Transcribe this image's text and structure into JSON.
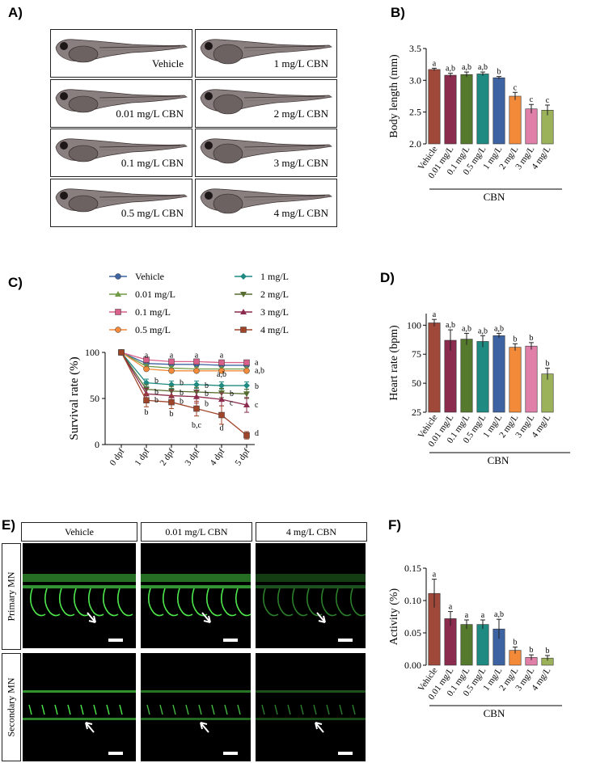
{
  "panels": {
    "a": "A)",
    "b": "B)",
    "c": "C)",
    "d": "D)",
    "e": "E)",
    "f": "F)"
  },
  "fish_images": [
    {
      "label": "Vehicle"
    },
    {
      "label": "1 mg/L CBN"
    },
    {
      "label": "0.01 mg/L CBN"
    },
    {
      "label": "2 mg/L CBN"
    },
    {
      "label": "0.1 mg/L CBN"
    },
    {
      "label": "3 mg/L CBN"
    },
    {
      "label": "0.5 mg/L CBN"
    },
    {
      "label": "4 mg/L CBN"
    }
  ],
  "mn_images": {
    "headers": [
      "Vehicle",
      "0.01 mg/L CBN",
      "4 mg/L CBN"
    ],
    "rows": [
      "Primary MN",
      "Secondary MN"
    ]
  },
  "colors": {
    "vehicle": "#A0483A",
    "c001": "#8B2B4E",
    "c01": "#557A2E",
    "c05": "#1F8A82",
    "c1": "#3E63A3",
    "c2": "#F28A3A",
    "c3": "#E07FA8",
    "c4": "#9BB25B",
    "line_vehicle": "#3E63A3",
    "line_001": "#6E9A45",
    "line_01": "#D9608A",
    "line_05": "#F28A3A",
    "line_1": "#1F8A82",
    "line_2": "#556B2F",
    "line_3": "#8B2B4E",
    "line_4": "#A0452A"
  },
  "chart_data": [
    {
      "id": "B",
      "type": "bar",
      "ylabel": "Body length (mm)",
      "xlabel": "CBN",
      "categories": [
        "Vehicle",
        "0.01 mg/L",
        "0.1 mg/L",
        "0.5 mg/L",
        "1 mg/L",
        "2 mg/L",
        "3 mg/L",
        "4 mg/L"
      ],
      "values": [
        3.17,
        3.08,
        3.09,
        3.1,
        3.04,
        2.75,
        2.55,
        2.53
      ],
      "errors": [
        0.02,
        0.03,
        0.04,
        0.03,
        0.02,
        0.06,
        0.07,
        0.08
      ],
      "letters": [
        "a",
        "a,b",
        "a,b",
        "a,b",
        "b",
        "c",
        "c",
        "c"
      ],
      "ylim": [
        2.0,
        3.5
      ],
      "yticks": [
        "2.0",
        "2.5",
        "3.0",
        "3.5"
      ]
    },
    {
      "id": "C",
      "type": "line",
      "ylabel": "Survival rate (%)",
      "x": [
        "0 dpf",
        "1 dpf",
        "2 dpf",
        "3 dpf",
        "4 dpf",
        "5 dpf"
      ],
      "ylim": [
        0,
        100
      ],
      "yticks": [
        "0",
        "50",
        "100"
      ],
      "series": [
        {
          "name": "Vehicle",
          "values": [
            100,
            88,
            87,
            87,
            86,
            86
          ],
          "errors": [
            0,
            2,
            2,
            2,
            2,
            2
          ],
          "marker": "circle"
        },
        {
          "name": "0.01 mg/L",
          "values": [
            100,
            85,
            83,
            82,
            82,
            82
          ],
          "errors": [
            0,
            2,
            2,
            2,
            2,
            2
          ],
          "marker": "triangle"
        },
        {
          "name": "0.1 mg/L",
          "values": [
            100,
            92,
            90,
            90,
            89,
            89
          ],
          "errors": [
            0,
            2,
            2,
            2,
            2,
            2
          ],
          "marker": "square"
        },
        {
          "name": "0.5 mg/L",
          "values": [
            100,
            82,
            80,
            80,
            80,
            80
          ],
          "errors": [
            0,
            2,
            2,
            2,
            2,
            2
          ],
          "marker": "circle"
        },
        {
          "name": "1 mg/L",
          "values": [
            100,
            67,
            65,
            65,
            64,
            64
          ],
          "errors": [
            0,
            4,
            4,
            4,
            4,
            4
          ],
          "marker": "diamond"
        },
        {
          "name": "2 mg/L",
          "values": [
            100,
            60,
            58,
            57,
            56,
            55
          ],
          "errors": [
            0,
            5,
            5,
            5,
            5,
            5
          ],
          "marker": "triangle-down"
        },
        {
          "name": "3 mg/L",
          "values": [
            100,
            55,
            53,
            52,
            49,
            43
          ],
          "errors": [
            0,
            6,
            6,
            7,
            7,
            8
          ],
          "marker": "triangle"
        },
        {
          "name": "4 mg/L",
          "values": [
            100,
            48,
            46,
            39,
            32,
            10
          ],
          "errors": [
            0,
            7,
            7,
            8,
            10,
            4
          ],
          "marker": "square"
        }
      ],
      "annotations": [
        {
          "x": "1 dpf",
          "y": 98,
          "text": "a"
        },
        {
          "x": "2 dpf",
          "y": 98,
          "text": "a"
        },
        {
          "x": "3 dpf",
          "y": 98,
          "text": "a"
        },
        {
          "x": "4 dpf",
          "y": 98,
          "text": "a"
        },
        {
          "x": "5 dpf",
          "y": 90,
          "text": "a",
          "side": "right"
        },
        {
          "x": "5 dpf",
          "y": 81,
          "text": "a,b",
          "side": "right"
        },
        {
          "x": "4 dpf",
          "y": 77,
          "text": "a,b"
        },
        {
          "x": "1 dpf",
          "y": 70,
          "text": "b",
          "side": "right"
        },
        {
          "x": "2 dpf",
          "y": 68,
          "text": "b",
          "side": "right"
        },
        {
          "x": "3 dpf",
          "y": 65,
          "text": "b",
          "side": "right"
        },
        {
          "x": "5 dpf",
          "y": 64,
          "text": "b",
          "side": "right"
        },
        {
          "x": "1 dpf",
          "y": 58,
          "text": "b",
          "side": "right"
        },
        {
          "x": "2 dpf",
          "y": 57,
          "text": "b",
          "side": "right"
        },
        {
          "x": "3 dpf",
          "y": 56,
          "text": "b",
          "side": "right"
        },
        {
          "x": "4 dpf",
          "y": 56,
          "text": "b",
          "side": "right"
        },
        {
          "x": "1 dpf",
          "y": 49,
          "text": "b",
          "side": "right"
        },
        {
          "x": "2 dpf",
          "y": 48,
          "text": "b",
          "side": "right"
        },
        {
          "x": "3 dpf",
          "y": 45,
          "text": "b",
          "side": "right"
        },
        {
          "x": "4 dpf",
          "y": 46,
          "text": "c",
          "side": "right"
        },
        {
          "x": "5 dpf",
          "y": 44,
          "text": "c",
          "side": "right"
        },
        {
          "x": "1 dpf",
          "y": 36,
          "text": "b"
        },
        {
          "x": "2 dpf",
          "y": 34,
          "text": "b"
        },
        {
          "x": "3 dpf",
          "y": 22,
          "text": "b,c"
        },
        {
          "x": "4 dpf",
          "y": 19,
          "text": "d"
        },
        {
          "x": "5 dpf",
          "y": 13,
          "text": "d",
          "side": "right"
        }
      ]
    },
    {
      "id": "D",
      "type": "bar",
      "ylabel": "Heart rate (bpm)",
      "xlabel": "CBN",
      "categories": [
        "Vehicle",
        "0.01 mg/L",
        "0.1 mg/L",
        "0.5 mg/L",
        "1 mg/L",
        "2 mg/L",
        "3 mg/L",
        "4 mg/L"
      ],
      "values": [
        102,
        87,
        88,
        86,
        91,
        81,
        82,
        58
      ],
      "errors": [
        3,
        9,
        5,
        5,
        2,
        3,
        3,
        5
      ],
      "letters": [
        "a",
        "a,b",
        "a,b",
        "a,b",
        "a,b",
        "b",
        "b",
        "b"
      ],
      "ylim": [
        25,
        110
      ],
      "yticks": [
        "25",
        "50",
        "75",
        "100"
      ]
    },
    {
      "id": "F",
      "type": "bar",
      "ylabel": "Activity (%)",
      "xlabel": "CBN",
      "categories": [
        "Vehicle",
        "0.01 mg/L",
        "0.1 mg/L",
        "0.5 mg/L",
        "1 mg/L",
        "2 mg/L",
        "3 mg/L",
        "4 mg/L"
      ],
      "values": [
        0.111,
        0.072,
        0.063,
        0.063,
        0.056,
        0.023,
        0.012,
        0.011
      ],
      "errors": [
        0.022,
        0.011,
        0.007,
        0.007,
        0.015,
        0.005,
        0.004,
        0.004
      ],
      "letters": [
        "a",
        "a",
        "a",
        "a",
        "a,b",
        "b",
        "b",
        "b"
      ],
      "ylim": [
        0,
        0.15
      ],
      "yticks": [
        "0.00",
        "0.05",
        "0.10",
        "0.15"
      ]
    }
  ]
}
